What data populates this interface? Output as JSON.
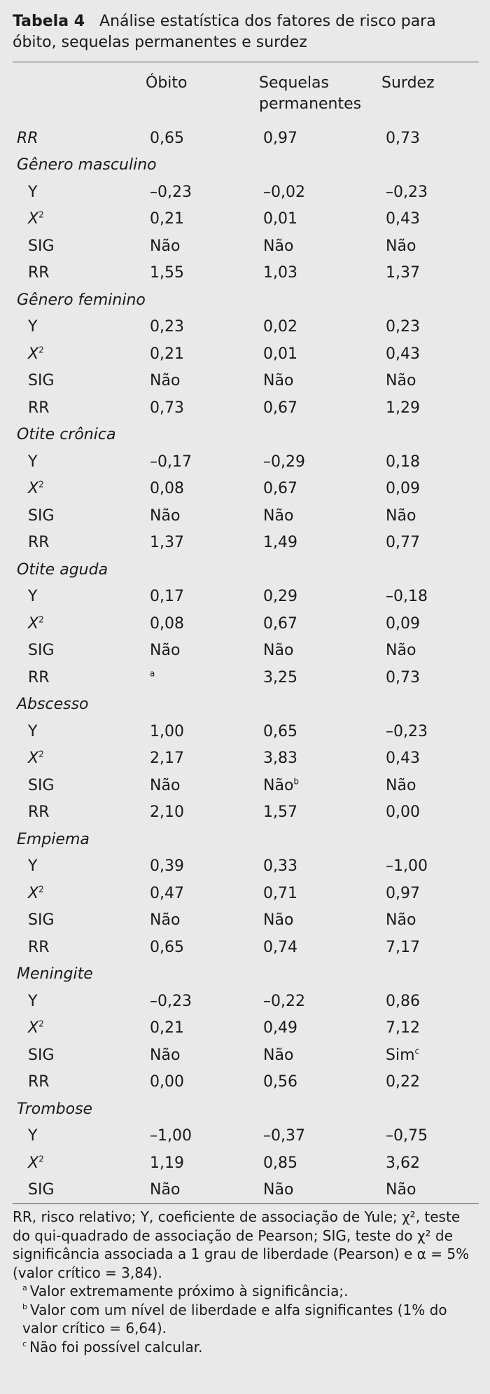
{
  "caption": {
    "label": "Tabela 4",
    "text": "Análise estatística dos fatores de risco para óbito, sequelas permanentes e surdez"
  },
  "headers": [
    "Óbito",
    "Sequelas permanentes",
    "Surdez"
  ],
  "rows": [
    {
      "type": "group",
      "label": "RR",
      "values": [
        "0,65",
        "0,97",
        "0,73"
      ]
    },
    {
      "type": "group",
      "label": "Gênero masculino",
      "values": [
        "",
        "",
        ""
      ]
    },
    {
      "type": "sub",
      "label": "Y",
      "values": [
        "–0,23",
        "–0,02",
        "–0,23"
      ]
    },
    {
      "type": "sub",
      "label": "X²",
      "values": [
        "0,21",
        "0,01",
        "0,43"
      ]
    },
    {
      "type": "sub",
      "label": "SIG",
      "values": [
        "Não",
        "Não",
        "Não"
      ]
    },
    {
      "type": "sub",
      "label": "RR",
      "values": [
        "1,55",
        "1,03",
        "1,37"
      ]
    },
    {
      "type": "group",
      "label": "Gênero feminino",
      "values": [
        "",
        "",
        ""
      ]
    },
    {
      "type": "sub",
      "label": "Y",
      "values": [
        "0,23",
        "0,02",
        "0,23"
      ]
    },
    {
      "type": "sub",
      "label": "X²",
      "values": [
        "0,21",
        "0,01",
        "0,43"
      ]
    },
    {
      "type": "sub",
      "label": "SIG",
      "values": [
        "Não",
        "Não",
        "Não"
      ]
    },
    {
      "type": "sub",
      "label": "RR",
      "values": [
        "0,73",
        "0,67",
        "1,29"
      ]
    },
    {
      "type": "group",
      "label": "Otite crônica",
      "values": [
        "",
        "",
        ""
      ]
    },
    {
      "type": "sub",
      "label": "Y",
      "values": [
        "–0,17",
        "–0,29",
        "0,18"
      ]
    },
    {
      "type": "sub",
      "label": "X²",
      "values": [
        "0,08",
        "0,67",
        "0,09"
      ]
    },
    {
      "type": "sub",
      "label": "SIG",
      "values": [
        "Não",
        "Não",
        "Não"
      ]
    },
    {
      "type": "sub",
      "label": "RR",
      "values": [
        "1,37",
        "1,49",
        "0,77"
      ]
    },
    {
      "type": "group",
      "label": "Otite aguda",
      "values": [
        "",
        "",
        ""
      ]
    },
    {
      "type": "sub",
      "label": "Y",
      "values": [
        "0,17",
        "0,29",
        "–0,18"
      ]
    },
    {
      "type": "sub",
      "label": "X²",
      "values": [
        "0,08",
        "0,67",
        "0,09"
      ]
    },
    {
      "type": "sub",
      "label": "SIG",
      "values": [
        "Não",
        "Não",
        "Não"
      ]
    },
    {
      "type": "sub",
      "label": "RR",
      "values": [
        "a",
        "3,25",
        "0,73"
      ]
    },
    {
      "type": "group",
      "label": "Abscesso",
      "values": [
        "",
        "",
        ""
      ]
    },
    {
      "type": "sub",
      "label": "Y",
      "values": [
        "1,00",
        "0,65",
        "–0,23"
      ]
    },
    {
      "type": "sub",
      "label": "X²",
      "values": [
        "2,17",
        "3,83",
        "0,43"
      ]
    },
    {
      "type": "sub",
      "label": "SIG",
      "values": [
        "Não",
        "Nãob",
        "Não"
      ]
    },
    {
      "type": "sub",
      "label": "RR",
      "values": [
        "2,10",
        "1,57",
        "0,00"
      ]
    },
    {
      "type": "group",
      "label": "Empiema",
      "values": [
        "",
        "",
        ""
      ]
    },
    {
      "type": "sub",
      "label": "Y",
      "values": [
        "0,39",
        "0,33",
        "–1,00"
      ]
    },
    {
      "type": "sub",
      "label": "X²",
      "values": [
        "0,47",
        "0,71",
        "0,97"
      ]
    },
    {
      "type": "sub",
      "label": "SIG",
      "values": [
        "Não",
        "Não",
        "Não"
      ]
    },
    {
      "type": "sub",
      "label": "RR",
      "values": [
        "0,65",
        "0,74",
        "7,17"
      ]
    },
    {
      "type": "group",
      "label": "Meningite",
      "values": [
        "",
        "",
        ""
      ]
    },
    {
      "type": "sub",
      "label": "Y",
      "values": [
        "–0,23",
        "–0,22",
        "0,86"
      ]
    },
    {
      "type": "sub",
      "label": "X²",
      "values": [
        "0,21",
        "0,49",
        "7,12"
      ]
    },
    {
      "type": "sub",
      "label": "SIG",
      "values": [
        "Não",
        "Não",
        "Simc"
      ]
    },
    {
      "type": "sub",
      "label": "RR",
      "values": [
        "0,00",
        "0,56",
        "0,22"
      ]
    },
    {
      "type": "group",
      "label": "Trombose",
      "values": [
        "",
        "",
        ""
      ]
    },
    {
      "type": "sub",
      "label": "Y",
      "values": [
        "–1,00",
        "–0,37",
        "–0,75"
      ]
    },
    {
      "type": "sub",
      "label": "X²",
      "values": [
        "1,19",
        "0,85",
        "3,62"
      ]
    },
    {
      "type": "sub",
      "label": "SIG",
      "values": [
        "Não",
        "Não",
        "Não"
      ]
    }
  ],
  "notes": {
    "main": "RR, risco relativo; Y, coeficiente de associação de Yule; χ², teste do qui-quadrado de associação de Pearson; SIG, teste do χ² de significância associada a 1 grau de liberdade (Pearson) e α = 5% (valor crítico = 3,84).",
    "footnotes": [
      {
        "mark": "a",
        "text": "Valor extremamente próximo à significância;."
      },
      {
        "mark": "b",
        "text": "Valor com um nível de liberdade e alfa significantes (1% do valor crítico = 6,64)."
      },
      {
        "mark": "c",
        "text": "Não foi possível calcular."
      }
    ]
  }
}
